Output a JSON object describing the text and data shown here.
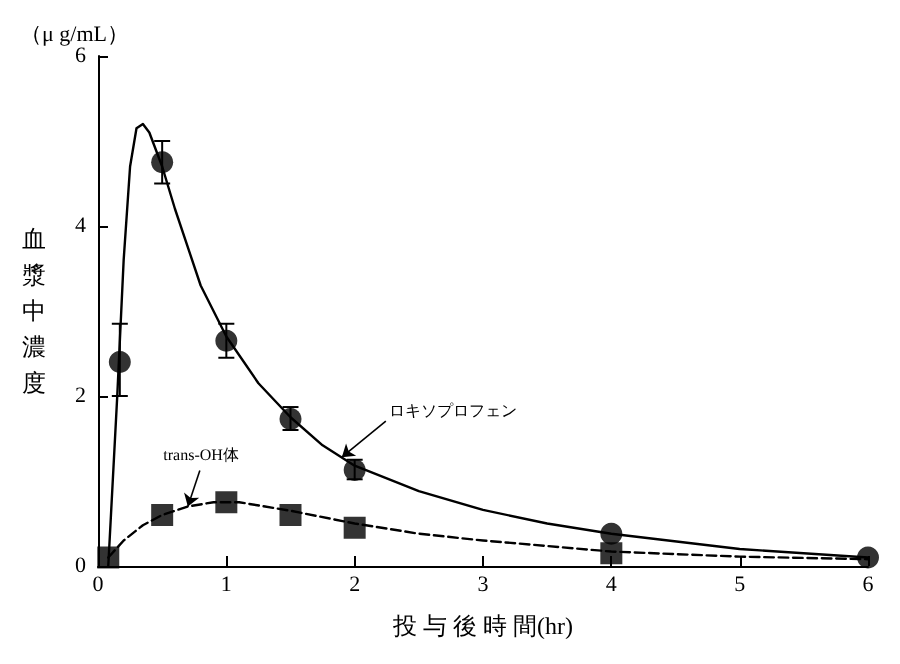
{
  "chart_data": {
    "type": "scatter",
    "xlabel": "投 与 後 時 間(hr)",
    "ylabel": "血漿中濃度",
    "annotations": [
      "（μ g/mL）",
      {
        "text": "ロキソプロフェン",
        "x": 1.9,
        "y": 1.28
      },
      {
        "text": "trans-OH体",
        "x": 0.7,
        "y": 0.7
      }
    ],
    "xlim": [
      0,
      6
    ],
    "xticks": [
      0,
      1,
      2,
      3,
      4,
      5,
      6
    ],
    "ylim": [
      0,
      6
    ],
    "yticks": [
      0,
      2,
      4,
      6
    ],
    "grid": false,
    "series": [
      {
        "type": "line",
        "color": "#000000",
        "marker": "none",
        "line_style": "solid",
        "x": [
          0.08,
          0.15,
          0.2,
          0.25,
          0.3,
          0.35,
          0.4,
          0.5,
          0.6,
          0.8,
          1,
          1.25,
          1.5,
          1.75,
          2,
          2.5,
          3,
          3.5,
          4,
          5,
          6
        ],
        "values": [
          0,
          2.0,
          3.6,
          4.7,
          5.15,
          5.2,
          5.1,
          4.7,
          4.2,
          3.3,
          2.7,
          2.15,
          1.75,
          1.42,
          1.18,
          0.88,
          0.66,
          0.5,
          0.38,
          0.2,
          0.1
        ]
      },
      {
        "type": "line",
        "color": "#000000",
        "marker": "none",
        "line_style": "dashed",
        "x": [
          0.08,
          0.2,
          0.35,
          0.5,
          0.7,
          0.9,
          1.1,
          1.5,
          2,
          2.5,
          3,
          4,
          5,
          6
        ],
        "values": [
          0.1,
          0.3,
          0.48,
          0.6,
          0.7,
          0.75,
          0.75,
          0.65,
          0.5,
          0.38,
          0.3,
          0.17,
          0.11,
          0.08
        ]
      },
      {
        "color": "#000000",
        "marker": "circle",
        "x": [
          0.17,
          0.5,
          1,
          1.5,
          2,
          4,
          6
        ],
        "values": [
          2.4,
          4.75,
          2.65,
          1.73,
          1.13,
          0.38,
          0.1
        ],
        "errors": [
          [
            2.0,
            2.85
          ],
          [
            4.5,
            5.0
          ],
          [
            2.45,
            2.85
          ],
          [
            1.6,
            1.87
          ],
          [
            1.02,
            1.25
          ],
          null,
          null
        ]
      },
      {
        "color": "#000000",
        "marker": "square",
        "x": [
          0.08,
          0.5,
          1,
          1.5,
          2,
          4
        ],
        "values": [
          0.1,
          0.6,
          0.75,
          0.6,
          0.45,
          0.15
        ]
      }
    ]
  }
}
